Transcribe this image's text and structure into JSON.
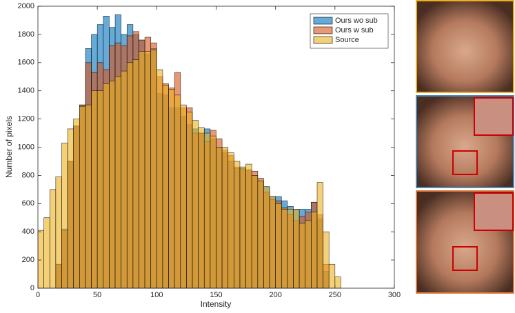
{
  "chart_data": {
    "type": "histogram",
    "xlabel": "Intensity",
    "ylabel": "Number of pixels",
    "xlim": [
      0,
      300
    ],
    "xticks": [
      0,
      50,
      100,
      150,
      200,
      250,
      300
    ],
    "ylim": [
      0,
      2000
    ],
    "yticks": [
      0,
      200,
      400,
      600,
      800,
      1000,
      1200,
      1400,
      1600,
      1800,
      2000
    ],
    "legend": "upper right",
    "bins": [
      0,
      5,
      10,
      15,
      20,
      25,
      30,
      35,
      40,
      45,
      50,
      55,
      60,
      65,
      70,
      75,
      80,
      85,
      90,
      95,
      100,
      105,
      110,
      115,
      120,
      125,
      130,
      135,
      140,
      145,
      150,
      155,
      160,
      165,
      170,
      175,
      180,
      185,
      190,
      195,
      200,
      205,
      210,
      215,
      220,
      225,
      230,
      235,
      240,
      245,
      250,
      255
    ],
    "series": [
      {
        "name": "Ours wo sub",
        "color": "#0072bd",
        "values": [
          0,
          0,
          0,
          170,
          420,
          900,
          1150,
          1300,
          1700,
          1800,
          1870,
          1930,
          1850,
          1940,
          1800,
          1870,
          1800,
          1760,
          1660,
          1700,
          1380,
          1370,
          1280,
          1280,
          1220,
          1160,
          1130,
          1100,
          1130,
          1060,
          1000,
          960,
          900,
          850,
          850,
          840,
          800,
          760,
          720,
          650,
          650,
          620,
          580,
          560,
          560,
          560,
          610,
          490,
          120,
          0,
          0
        ]
      },
      {
        "name": "Ours w sub",
        "color": "#d95319",
        "values": [
          0,
          0,
          0,
          170,
          410,
          900,
          1150,
          1300,
          1600,
          1530,
          1600,
          1550,
          1720,
          1740,
          1720,
          1790,
          1820,
          1760,
          1780,
          1740,
          1500,
          1450,
          1420,
          1530,
          1280,
          1280,
          1100,
          1100,
          1040,
          1120,
          1060,
          980,
          940,
          860,
          840,
          840,
          830,
          780,
          680,
          630,
          620,
          570,
          520,
          480,
          510,
          540,
          610,
          520,
          170,
          0,
          0
        ]
      },
      {
        "name": "Source",
        "color": "#edb120",
        "values": [
          410,
          500,
          700,
          790,
          1030,
          1130,
          1200,
          1290,
          1300,
          1400,
          1400,
          1450,
          1470,
          1500,
          1540,
          1600,
          1620,
          1680,
          1680,
          1690,
          1550,
          1440,
          1410,
          1370,
          1300,
          1250,
          1190,
          1140,
          1100,
          1080,
          1000,
          1000,
          960,
          900,
          860,
          880,
          800,
          760,
          720,
          650,
          600,
          560,
          560,
          560,
          460,
          480,
          540,
          750,
          400,
          170,
          80
        ]
      }
    ]
  }
}
